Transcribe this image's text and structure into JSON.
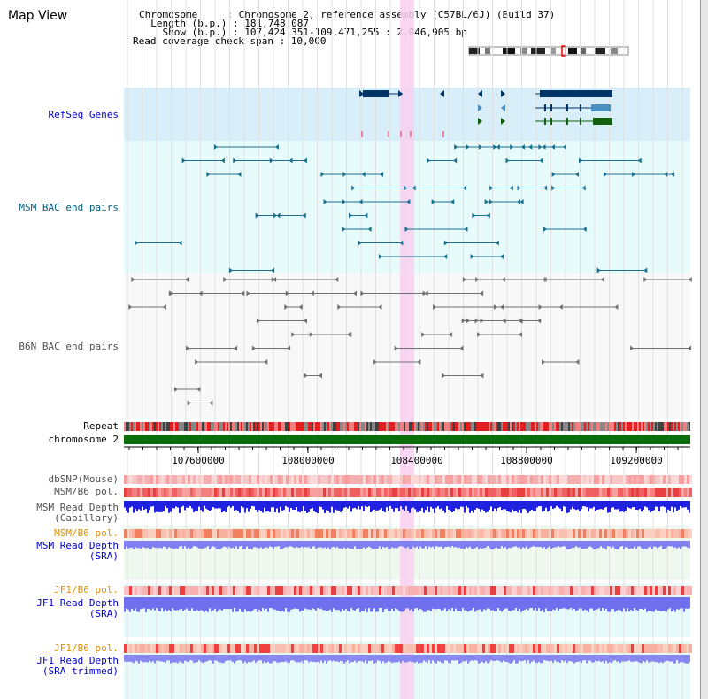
{
  "title": "Map View",
  "header": {
    "chromosome": "Chromosome     : Chromosome 2, reference assembly (C57BL/6J) (Build 37)",
    "length": "  Length (b.p.) : 181,748,087",
    "show": "    Show (b.p.) : 107,424,351-109,471,255 : 2,046,905 bp",
    "coverage": "Read coverage check span : 10,000"
  },
  "tracks": {
    "refseq": "RefSeq Genes",
    "msm_bac": "MSM BAC end pairs",
    "b6n_bac": "B6N BAC end pairs",
    "repeat": "Repeat",
    "chromosome": "chromosome 2",
    "dbsnp": "dbSNP(Mouse)",
    "msm_b6_pol": "MSM/B6 pol.",
    "msm_depth_cap": "MSM Read Depth\n(Capillary)",
    "msm_b6_pol2": "MSM/B6 pol.",
    "msm_depth_sra": "MSM Read Depth\n(SRA)",
    "jf1_b6_pol": "JF1/B6 pol.",
    "jf1_depth_sra": "JF1 Read Depth\n(SRA)",
    "jf1_b6_pol2": "JF1/B6 pol.",
    "jf1_depth_trim": "JF1 Read Depth\n(SRA trimmed)"
  },
  "axis": {
    "ticks": [
      "107600000",
      "108000000",
      "108400000",
      "108800000",
      "109200000"
    ]
  },
  "colors": {
    "refseq_bg": "#d8eef8",
    "bac_bg": "#e8fbfb",
    "b6n_bg": "#f8f8f8",
    "highlight": "#f8d0f0",
    "chromosome_bar": "#0a6e0a",
    "label_blue": "#0000cc",
    "label_teal": "#006080",
    "label_orange": "#e09000",
    "label_gray": "#505050"
  }
}
